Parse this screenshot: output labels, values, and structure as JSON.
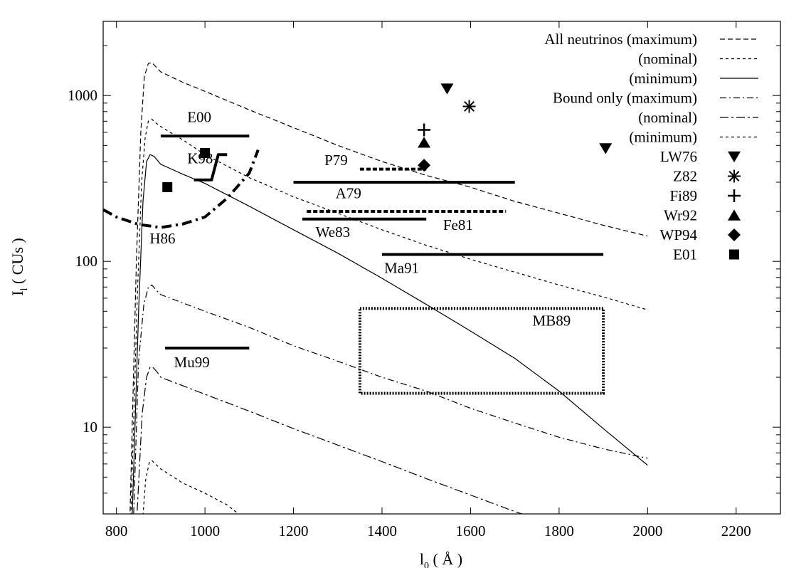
{
  "chart_data": {
    "type": "line",
    "xlabel_main": "l",
    "xlabel_sub": "0",
    "xlabel_unit": " ( Å )",
    "ylabel_main": "I",
    "ylabel_sub": "l",
    "ylabel_unit": " ( CUs )",
    "x_scale": "linear",
    "y_scale": "log",
    "xlim": [
      770,
      2300
    ],
    "ylim": [
      3,
      2800
    ],
    "x_ticks": [
      800,
      1000,
      1200,
      1400,
      1600,
      1800,
      2000,
      2200
    ],
    "y_ticks": [
      10,
      100,
      1000
    ],
    "grid": false,
    "legend_position": "top-right",
    "series": [
      {
        "name": "All neutrinos (maximum)",
        "dash": "long",
        "points": [
          [
            830,
            2.5
          ],
          [
            845,
            100
          ],
          [
            855,
            600
          ],
          [
            863,
            1300
          ],
          [
            872,
            1560
          ],
          [
            880,
            1580
          ],
          [
            890,
            1480
          ],
          [
            900,
            1390
          ],
          [
            950,
            1200
          ],
          [
            1000,
            1060
          ],
          [
            1100,
            820
          ],
          [
            1200,
            640
          ],
          [
            1300,
            500
          ],
          [
            1400,
            400
          ],
          [
            1500,
            330
          ],
          [
            1600,
            280
          ],
          [
            1700,
            230
          ],
          [
            1800,
            195
          ],
          [
            1900,
            165
          ],
          [
            2000,
            142
          ]
        ]
      },
      {
        "name": "(nominal)",
        "dash": "short",
        "points": [
          [
            832,
            2.5
          ],
          [
            847,
            60
          ],
          [
            857,
            300
          ],
          [
            865,
            560
          ],
          [
            872,
            700
          ],
          [
            880,
            720
          ],
          [
            890,
            680
          ],
          [
            900,
            650
          ],
          [
            950,
            540
          ],
          [
            1000,
            440
          ],
          [
            1100,
            320
          ],
          [
            1200,
            245
          ],
          [
            1300,
            195
          ],
          [
            1400,
            155
          ],
          [
            1500,
            125
          ],
          [
            1600,
            103
          ],
          [
            1700,
            86
          ],
          [
            1800,
            72
          ],
          [
            1900,
            61
          ],
          [
            2000,
            51
          ]
        ]
      },
      {
        "name": "(minimum)",
        "dash": "solid",
        "points": [
          [
            835,
            2.5
          ],
          [
            850,
            50
          ],
          [
            860,
            230
          ],
          [
            868,
            400
          ],
          [
            876,
            440
          ],
          [
            885,
            430
          ],
          [
            900,
            385
          ],
          [
            950,
            335
          ],
          [
            1000,
            295
          ],
          [
            1100,
            215
          ],
          [
            1200,
            155
          ],
          [
            1300,
            112
          ],
          [
            1400,
            79
          ],
          [
            1500,
            55
          ],
          [
            1600,
            38
          ],
          [
            1700,
            26
          ],
          [
            1800,
            16.5
          ],
          [
            1900,
            9.8
          ],
          [
            2000,
            5.9
          ]
        ]
      },
      {
        "name": "Bound only (maximum)",
        "dash": "dashdot",
        "points": [
          [
            838,
            2.5
          ],
          [
            850,
            25
          ],
          [
            862,
            55
          ],
          [
            872,
            70
          ],
          [
            880,
            72
          ],
          [
            890,
            67
          ],
          [
            900,
            63
          ],
          [
            1000,
            50
          ],
          [
            1100,
            40
          ],
          [
            1200,
            31
          ],
          [
            1300,
            25
          ],
          [
            1400,
            20
          ],
          [
            1500,
            16.5
          ],
          [
            1600,
            13
          ],
          [
            1700,
            10.6
          ],
          [
            1800,
            8.7
          ],
          [
            1900,
            7.4
          ],
          [
            2000,
            6.5
          ]
        ]
      },
      {
        "name": "(nominal)",
        "dash": "dashdot2",
        "points": [
          [
            845,
            2.5
          ],
          [
            858,
            12
          ],
          [
            868,
            20
          ],
          [
            876,
            23
          ],
          [
            882,
            23
          ],
          [
            892,
            21.5
          ],
          [
            900,
            20
          ],
          [
            1000,
            15.8
          ],
          [
            1100,
            12.5
          ],
          [
            1200,
            9.8
          ],
          [
            1300,
            7.8
          ],
          [
            1400,
            6.2
          ],
          [
            1500,
            4.9
          ],
          [
            1600,
            3.9
          ],
          [
            1700,
            3.1
          ],
          [
            1750,
            2.8
          ]
        ]
      },
      {
        "name": "(minimum)",
        "dash": "short",
        "points": [
          [
            858,
            2.5
          ],
          [
            866,
            4.8
          ],
          [
            874,
            6.1
          ],
          [
            880,
            6.3
          ],
          [
            888,
            6.0
          ],
          [
            900,
            5.6
          ],
          [
            950,
            4.6
          ],
          [
            1000,
            4.0
          ],
          [
            1050,
            3.4
          ],
          [
            1090,
            2.8
          ]
        ]
      }
    ],
    "markers": [
      {
        "name": "LW76",
        "symbol": "triangle-down",
        "points": [
          [
            1547,
            1100
          ],
          [
            1905,
            480
          ]
        ]
      },
      {
        "name": "Z82",
        "symbol": "asterisk",
        "points": [
          [
            1597,
            860
          ]
        ]
      },
      {
        "name": "Fi89",
        "symbol": "plus",
        "points": [
          [
            1495,
            620
          ]
        ]
      },
      {
        "name": "Wr92",
        "symbol": "triangle-up",
        "points": [
          [
            1495,
            520
          ]
        ]
      },
      {
        "name": "WP94",
        "symbol": "diamond",
        "points": [
          [
            1495,
            380
          ]
        ]
      },
      {
        "name": "E01",
        "symbol": "square",
        "points": [
          [
            1000,
            450
          ],
          [
            915,
            280
          ]
        ]
      }
    ],
    "range_bars": [
      {
        "label": "E00",
        "x": [
          900,
          1100
        ],
        "y": 570,
        "style": "solid",
        "label_pos": "above"
      },
      {
        "label": "P79",
        "x": [
          1350,
          1500
        ],
        "y": 360,
        "style": "dashed",
        "label_pos": "left"
      },
      {
        "label": "A79",
        "x": [
          1200,
          1700
        ],
        "y": 300,
        "style": "solid",
        "label_pos": "below"
      },
      {
        "label": "Fe81",
        "x": [
          1230,
          1680
        ],
        "y": 200,
        "style": "dashed",
        "label_pos": "below"
      },
      {
        "label": "We83",
        "x": [
          1220,
          1500
        ],
        "y": 180,
        "style": "solid",
        "label_pos": "below"
      },
      {
        "label": "Ma91",
        "x": [
          1400,
          1900
        ],
        "y": 110,
        "style": "solid",
        "label_pos": "below"
      },
      {
        "label": "Mu99",
        "x": [
          910,
          1100
        ],
        "y": 30,
        "style": "solid",
        "label_pos": "below"
      }
    ],
    "regions": [
      {
        "label": "MB89",
        "x": [
          1350,
          1900
        ],
        "y": [
          16,
          52
        ],
        "style": "dotted-box"
      }
    ],
    "curves": [
      {
        "label": "H86",
        "style": "dashdot-thick",
        "points": [
          [
            770,
            205
          ],
          [
            800,
            185
          ],
          [
            850,
            167
          ],
          [
            900,
            160
          ],
          [
            950,
            168
          ],
          [
            1000,
            185
          ],
          [
            1050,
            240
          ],
          [
            1100,
            340
          ],
          [
            1120,
            470
          ]
        ]
      },
      {
        "label": "K98",
        "style": "step-thick",
        "points": [
          [
            975,
            310
          ],
          [
            1015,
            310
          ],
          [
            1030,
            440
          ],
          [
            1050,
            440
          ]
        ]
      }
    ],
    "annotations": [
      {
        "text": "E00",
        "x": 960,
        "y": 690
      },
      {
        "text": "K98",
        "x": 960,
        "y": 390
      },
      {
        "text": "H86",
        "x": 875,
        "y": 128
      },
      {
        "text": "P79",
        "x": 1270,
        "y": 380
      },
      {
        "text": "A79",
        "x": 1295,
        "y": 240
      },
      {
        "text": "We83",
        "x": 1250,
        "y": 140
      },
      {
        "text": "Fe81",
        "x": 1538,
        "y": 155
      },
      {
        "text": "Ma91",
        "x": 1405,
        "y": 85
      },
      {
        "text": "MB89",
        "x": 1740,
        "y": 41
      },
      {
        "text": "Mu99",
        "x": 930,
        "y": 23
      }
    ]
  }
}
